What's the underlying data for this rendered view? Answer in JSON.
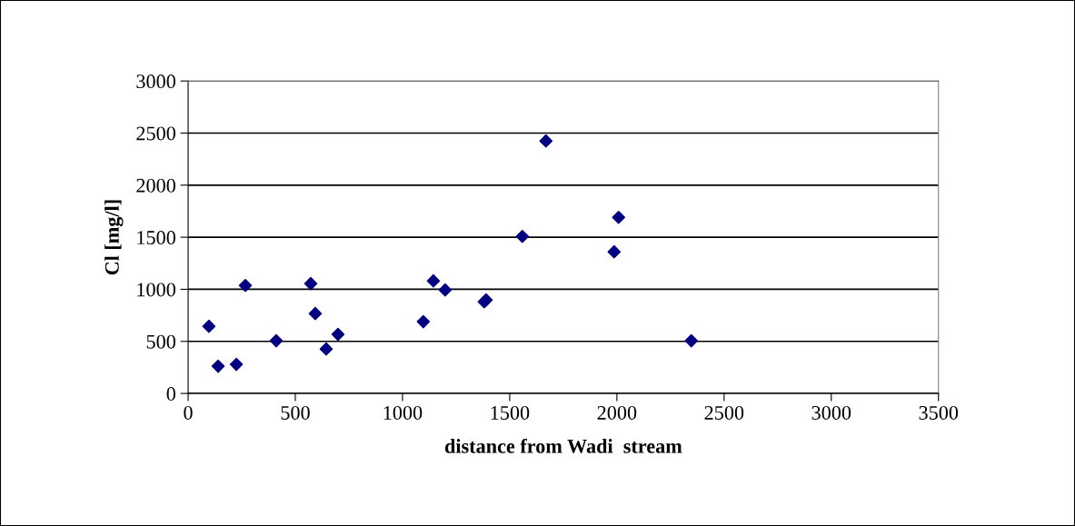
{
  "chart_data": {
    "type": "scatter",
    "xlabel": "distance from Wadi  stream",
    "ylabel": "Cl [mg/l]",
    "x": [
      97,
      140,
      225,
      267,
      411,
      572,
      593,
      644,
      699,
      1097,
      1144,
      1199,
      1381,
      1390,
      1559,
      1669,
      1987,
      2008,
      2347
    ],
    "series": [
      {
        "color": "#000080",
        "values": [
          645,
          262,
          279,
          1037,
          506,
          1055,
          767,
          427,
          567,
          689,
          1081,
          994,
          880,
          898,
          1508,
          2424,
          1360,
          1691,
          506
        ]
      }
    ],
    "xlim": [
      0,
      3500
    ],
    "xticks": [
      0,
      500,
      1000,
      1500,
      2000,
      2500,
      3000,
      3500
    ],
    "ylim": [
      0,
      3000
    ],
    "yticks": [
      0,
      500,
      1000,
      1500,
      2000,
      2500,
      3000
    ],
    "grid": "y",
    "marker": "diamond",
    "legend": false
  }
}
